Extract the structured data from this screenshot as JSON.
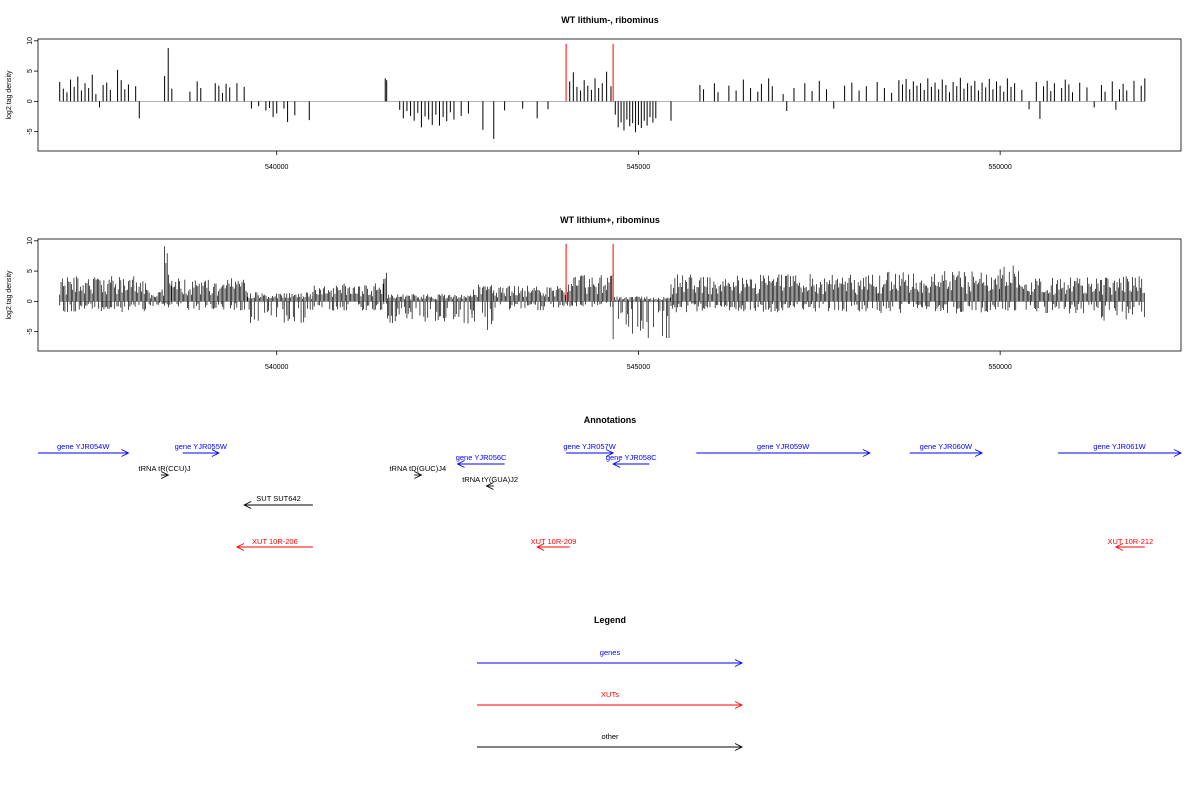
{
  "chart_data": [
    {
      "type": "bar",
      "title": "WT lithium-, ribominus",
      "ylabel": "log2 tag density",
      "xlabel": "",
      "xlim": [
        536700,
        552500
      ],
      "ylim": [
        -8.2,
        10.3
      ],
      "yticks": [
        -5,
        0,
        5,
        10
      ],
      "xticks": [
        540000,
        545000,
        550000
      ],
      "colors": {
        "bars": "#000000",
        "markers": "#ff0000",
        "baseline": "#999999"
      },
      "markers": [
        544000,
        544650
      ],
      "marker_top": 9.5,
      "bars": [
        {
          "x": 537000,
          "y": 3.2
        },
        {
          "x": 537050,
          "y": 2.1
        },
        {
          "x": 537100,
          "y": 1.5
        },
        {
          "x": 537150,
          "y": 3.6
        },
        {
          "x": 537200,
          "y": 2.4
        },
        {
          "x": 537250,
          "y": 4.1
        },
        {
          "x": 537300,
          "y": 1.8
        },
        {
          "x": 537350,
          "y": 3.0
        },
        {
          "x": 537400,
          "y": 2.2
        },
        {
          "x": 537450,
          "y": 4.4
        },
        {
          "x": 537500,
          "y": 1.2
        },
        {
          "x": 537550,
          "y": -1.0
        },
        {
          "x": 537600,
          "y": 2.7
        },
        {
          "x": 537650,
          "y": 3.1
        },
        {
          "x": 537700,
          "y": 1.9
        },
        {
          "x": 537800,
          "y": 5.2
        },
        {
          "x": 537850,
          "y": 3.5
        },
        {
          "x": 537900,
          "y": 2.0
        },
        {
          "x": 537950,
          "y": 2.8
        },
        {
          "x": 538050,
          "y": 2.5
        },
        {
          "x": 538100,
          "y": -2.8
        },
        {
          "x": 538450,
          "y": 4.2
        },
        {
          "x": 538500,
          "y": 8.8
        },
        {
          "x": 538550,
          "y": 2.1
        },
        {
          "x": 538800,
          "y": 1.6
        },
        {
          "x": 538900,
          "y": 3.3
        },
        {
          "x": 538950,
          "y": 2.2
        },
        {
          "x": 539150,
          "y": 3.0
        },
        {
          "x": 539200,
          "y": 2.6
        },
        {
          "x": 539250,
          "y": 1.4
        },
        {
          "x": 539300,
          "y": 2.9
        },
        {
          "x": 539350,
          "y": 2.3
        },
        {
          "x": 539450,
          "y": 3.0
        },
        {
          "x": 539550,
          "y": 2.4
        },
        {
          "x": 539650,
          "y": -1.2
        },
        {
          "x": 539750,
          "y": -0.8
        },
        {
          "x": 539850,
          "y": -1.5
        },
        {
          "x": 539900,
          "y": -1.1
        },
        {
          "x": 539950,
          "y": -2.6
        },
        {
          "x": 540000,
          "y": -2.0
        },
        {
          "x": 540100,
          "y": -1.2
        },
        {
          "x": 540150,
          "y": -3.4
        },
        {
          "x": 540250,
          "y": -2.3
        },
        {
          "x": 540450,
          "y": -3.1
        },
        {
          "x": 541500,
          "y": 3.8
        },
        {
          "x": 541520,
          "y": 3.5
        },
        {
          "x": 541700,
          "y": -1.4
        },
        {
          "x": 541750,
          "y": -2.8
        },
        {
          "x": 541800,
          "y": -1.6
        },
        {
          "x": 541850,
          "y": -2.4
        },
        {
          "x": 541900,
          "y": -3.2
        },
        {
          "x": 541950,
          "y": -1.9
        },
        {
          "x": 542000,
          "y": -4.3
        },
        {
          "x": 542050,
          "y": -2.5
        },
        {
          "x": 542100,
          "y": -3.0
        },
        {
          "x": 542150,
          "y": -3.9
        },
        {
          "x": 542200,
          "y": -2.2
        },
        {
          "x": 542250,
          "y": -4.0
        },
        {
          "x": 542300,
          "y": -2.6
        },
        {
          "x": 542350,
          "y": -3.3
        },
        {
          "x": 542400,
          "y": -1.8
        },
        {
          "x": 542450,
          "y": -3.0
        },
        {
          "x": 542550,
          "y": -2.4
        },
        {
          "x": 542650,
          "y": -2.0
        },
        {
          "x": 542850,
          "y": -4.7
        },
        {
          "x": 543000,
          "y": -6.2
        },
        {
          "x": 543150,
          "y": -1.5
        },
        {
          "x": 543400,
          "y": -1.2
        },
        {
          "x": 543600,
          "y": -2.8
        },
        {
          "x": 543750,
          "y": -1.3
        },
        {
          "x": 544050,
          "y": 3.3
        },
        {
          "x": 544100,
          "y": 4.8
        },
        {
          "x": 544150,
          "y": 2.4
        },
        {
          "x": 544200,
          "y": 1.8
        },
        {
          "x": 544250,
          "y": 3.5
        },
        {
          "x": 544300,
          "y": 2.6
        },
        {
          "x": 544350,
          "y": 1.9
        },
        {
          "x": 544400,
          "y": 3.8
        },
        {
          "x": 544450,
          "y": 2.2
        },
        {
          "x": 544500,
          "y": 3.0
        },
        {
          "x": 544560,
          "y": 4.9
        },
        {
          "x": 544620,
          "y": 2.5
        },
        {
          "x": 544680,
          "y": -2.2
        },
        {
          "x": 544720,
          "y": -4.3
        },
        {
          "x": 544760,
          "y": -3.5
        },
        {
          "x": 544800,
          "y": -4.8
        },
        {
          "x": 544840,
          "y": -3.0
        },
        {
          "x": 544880,
          "y": -4.1
        },
        {
          "x": 544920,
          "y": -3.6
        },
        {
          "x": 544960,
          "y": -5.1
        },
        {
          "x": 545000,
          "y": -3.9
        },
        {
          "x": 545040,
          "y": -4.4
        },
        {
          "x": 545080,
          "y": -3.2
        },
        {
          "x": 545120,
          "y": -4.0
        },
        {
          "x": 545160,
          "y": -2.6
        },
        {
          "x": 545200,
          "y": -3.5
        },
        {
          "x": 545240,
          "y": -2.8
        },
        {
          "x": 545450,
          "y": -3.2
        },
        {
          "x": 545850,
          "y": 2.7
        },
        {
          "x": 545900,
          "y": 2.0
        },
        {
          "x": 546050,
          "y": 3.0
        },
        {
          "x": 546100,
          "y": 1.5
        },
        {
          "x": 546250,
          "y": 2.6
        },
        {
          "x": 546350,
          "y": 1.8
        },
        {
          "x": 546450,
          "y": 3.6
        },
        {
          "x": 546550,
          "y": 2.2
        },
        {
          "x": 546650,
          "y": 1.6
        },
        {
          "x": 546700,
          "y": 2.9
        },
        {
          "x": 546800,
          "y": 3.8
        },
        {
          "x": 546850,
          "y": 2.5
        },
        {
          "x": 547000,
          "y": 1.2
        },
        {
          "x": 547050,
          "y": -1.6
        },
        {
          "x": 547150,
          "y": 2.2
        },
        {
          "x": 547300,
          "y": 3.0
        },
        {
          "x": 547400,
          "y": 1.7
        },
        {
          "x": 547500,
          "y": 3.4
        },
        {
          "x": 547600,
          "y": 2.0
        },
        {
          "x": 547700,
          "y": -1.2
        },
        {
          "x": 547850,
          "y": 2.6
        },
        {
          "x": 547950,
          "y": 3.1
        },
        {
          "x": 548050,
          "y": 1.8
        },
        {
          "x": 548150,
          "y": 2.5
        },
        {
          "x": 548300,
          "y": 3.2
        },
        {
          "x": 548400,
          "y": 2.2
        },
        {
          "x": 548500,
          "y": 1.4
        },
        {
          "x": 548600,
          "y": 3.5
        },
        {
          "x": 548650,
          "y": 2.8
        },
        {
          "x": 548700,
          "y": 3.7
        },
        {
          "x": 548750,
          "y": 2.0
        },
        {
          "x": 548800,
          "y": 3.3
        },
        {
          "x": 548850,
          "y": 2.6
        },
        {
          "x": 548900,
          "y": 3.0
        },
        {
          "x": 548950,
          "y": 1.9
        },
        {
          "x": 549000,
          "y": 3.8
        },
        {
          "x": 549050,
          "y": 2.4
        },
        {
          "x": 549100,
          "y": 3.1
        },
        {
          "x": 549150,
          "y": 2.0
        },
        {
          "x": 549200,
          "y": 3.6
        },
        {
          "x": 549250,
          "y": 2.7
        },
        {
          "x": 549300,
          "y": 1.5
        },
        {
          "x": 549350,
          "y": 3.2
        },
        {
          "x": 549400,
          "y": 2.5
        },
        {
          "x": 549450,
          "y": 3.9
        },
        {
          "x": 549500,
          "y": 2.1
        },
        {
          "x": 549550,
          "y": 3.0
        },
        {
          "x": 549600,
          "y": 2.6
        },
        {
          "x": 549650,
          "y": 3.4
        },
        {
          "x": 549700,
          "y": 1.8
        },
        {
          "x": 549750,
          "y": 3.1
        },
        {
          "x": 549800,
          "y": 2.3
        },
        {
          "x": 549850,
          "y": 3.7
        },
        {
          "x": 549900,
          "y": 2.0
        },
        {
          "x": 549950,
          "y": 3.3
        },
        {
          "x": 550000,
          "y": 2.6
        },
        {
          "x": 550050,
          "y": 1.6
        },
        {
          "x": 550100,
          "y": 3.8
        },
        {
          "x": 550150,
          "y": 2.4
        },
        {
          "x": 550200,
          "y": 3.0
        },
        {
          "x": 550300,
          "y": 1.9
        },
        {
          "x": 550400,
          "y": -1.3
        },
        {
          "x": 550500,
          "y": 3.2
        },
        {
          "x": 550550,
          "y": -2.9
        },
        {
          "x": 550600,
          "y": 2.5
        },
        {
          "x": 550650,
          "y": 3.4
        },
        {
          "x": 550700,
          "y": 1.7
        },
        {
          "x": 550750,
          "y": 3.0
        },
        {
          "x": 550850,
          "y": 2.2
        },
        {
          "x": 550900,
          "y": 3.6
        },
        {
          "x": 550950,
          "y": 2.8
        },
        {
          "x": 551000,
          "y": 1.5
        },
        {
          "x": 551100,
          "y": 3.1
        },
        {
          "x": 551200,
          "y": 2.3
        },
        {
          "x": 551300,
          "y": -1.0
        },
        {
          "x": 551400,
          "y": 2.7
        },
        {
          "x": 551450,
          "y": 1.6
        },
        {
          "x": 551550,
          "y": 3.3
        },
        {
          "x": 551600,
          "y": -1.4
        },
        {
          "x": 551650,
          "y": 2.0
        },
        {
          "x": 551700,
          "y": 2.9
        },
        {
          "x": 551750,
          "y": 1.8
        },
        {
          "x": 551850,
          "y": 3.4
        },
        {
          "x": 551950,
          "y": 2.6
        },
        {
          "x": 552000,
          "y": 3.8
        }
      ]
    },
    {
      "type": "bar",
      "title": "WT lithium+, ribominus",
      "ylabel": "log2 tag density",
      "xlabel": "",
      "xlim": [
        536700,
        552500
      ],
      "ylim": [
        -8.2,
        10.3
      ],
      "yticks": [
        -5,
        0,
        5,
        10
      ],
      "xticks": [
        540000,
        545000,
        550000
      ],
      "colors": {
        "bars": "#000000",
        "markers": "#ff0000",
        "baseline": "#999999"
      },
      "markers": [
        544000,
        544650
      ],
      "marker_top": 9.5,
      "density": {
        "pattern": "dense",
        "segments": [
          {
            "from": 537000,
            "to": 538200,
            "pos": 4.2,
            "neg": -1.8
          },
          {
            "from": 538200,
            "to": 538450,
            "pos": 2.0,
            "neg": -0.8
          },
          {
            "from": 538450,
            "to": 538550,
            "pos": 9.6,
            "neg": -1.0
          },
          {
            "from": 538550,
            "to": 539600,
            "pos": 3.8,
            "neg": -1.5
          },
          {
            "from": 539600,
            "to": 540500,
            "pos": 1.5,
            "neg": -3.6
          },
          {
            "from": 540500,
            "to": 541480,
            "pos": 3.0,
            "neg": -1.6
          },
          {
            "from": 541480,
            "to": 541530,
            "pos": 5.3,
            "neg": -0.5
          },
          {
            "from": 541530,
            "to": 542700,
            "pos": 1.2,
            "neg": -3.7
          },
          {
            "from": 542700,
            "to": 543000,
            "pos": 2.8,
            "neg": -4.8
          },
          {
            "from": 543000,
            "to": 544000,
            "pos": 2.6,
            "neg": -1.5
          },
          {
            "from": 544000,
            "to": 544650,
            "pos": 4.5,
            "neg": -1.0
          },
          {
            "from": 544650,
            "to": 545450,
            "pos": 0.8,
            "neg": -6.3
          },
          {
            "from": 545450,
            "to": 548300,
            "pos": 4.5,
            "neg": -1.8
          },
          {
            "from": 548300,
            "to": 550000,
            "pos": 5.0,
            "neg": -2.0
          },
          {
            "from": 550000,
            "to": 550400,
            "pos": 6.0,
            "neg": -1.6
          },
          {
            "from": 550400,
            "to": 551400,
            "pos": 4.0,
            "neg": -2.0
          },
          {
            "from": 551400,
            "to": 552000,
            "pos": 4.2,
            "neg": -3.2
          }
        ]
      }
    }
  ],
  "annotations": {
    "title": "Annotations",
    "xlim": [
      536700,
      552500
    ],
    "features": [
      {
        "label": "gene YJR054W",
        "kind": "gene",
        "start": 536700,
        "end": 537950,
        "dir": "+",
        "row": 0
      },
      {
        "label": "gene YJR055W",
        "kind": "gene",
        "start": 538700,
        "end": 539200,
        "dir": "+",
        "row": 0
      },
      {
        "label": "gene YJR056C",
        "kind": "gene",
        "start": 542500,
        "end": 543150,
        "dir": "-",
        "row": 1
      },
      {
        "label": "gene YJR057W",
        "kind": "gene",
        "start": 544000,
        "end": 544650,
        "dir": "+",
        "row": 0
      },
      {
        "label": "gene YJR058C",
        "kind": "gene",
        "start": 544650,
        "end": 545150,
        "dir": "-",
        "row": 1
      },
      {
        "label": "gene YJR059W",
        "kind": "gene",
        "start": 545800,
        "end": 548200,
        "dir": "+",
        "row": 0
      },
      {
        "label": "gene YJR060W",
        "kind": "gene",
        "start": 548750,
        "end": 549750,
        "dir": "+",
        "row": 0
      },
      {
        "label": "gene YJR061W",
        "kind": "gene",
        "start": 550800,
        "end": 552500,
        "dir": "+",
        "row": 0
      },
      {
        "label": "tRNA tR(CCU)J",
        "kind": "other",
        "start": 538400,
        "end": 538500,
        "dir": "+",
        "row": 2
      },
      {
        "label": "tRNA tD(GUC)J4",
        "kind": "other",
        "start": 541900,
        "end": 542000,
        "dir": "+",
        "row": 2
      },
      {
        "label": "tRNA tY(GUA)J2",
        "kind": "other",
        "start": 542900,
        "end": 543000,
        "dir": "-",
        "row": 3
      },
      {
        "label": "SUT SUT642",
        "kind": "other",
        "start": 539550,
        "end": 540500,
        "dir": "-",
        "row": 4
      },
      {
        "label": "XUT 10R-206",
        "kind": "xut",
        "start": 539450,
        "end": 540500,
        "dir": "-",
        "row": 5
      },
      {
        "label": "XUT 10R-209",
        "kind": "xut",
        "start": 543600,
        "end": 544050,
        "dir": "-",
        "row": 5
      },
      {
        "label": "XUT 10R-212",
        "kind": "xut",
        "start": 551600,
        "end": 552000,
        "dir": "-",
        "row": 5
      }
    ]
  },
  "legend": {
    "title": "Legend",
    "items": [
      {
        "label": "genes",
        "color": "#0000ff"
      },
      {
        "label": "XUTs",
        "color": "#ff0000"
      },
      {
        "label": "other",
        "color": "#000000"
      }
    ]
  },
  "colors": {
    "gene": "#0000ff",
    "xut": "#ff0000",
    "other": "#000000"
  }
}
